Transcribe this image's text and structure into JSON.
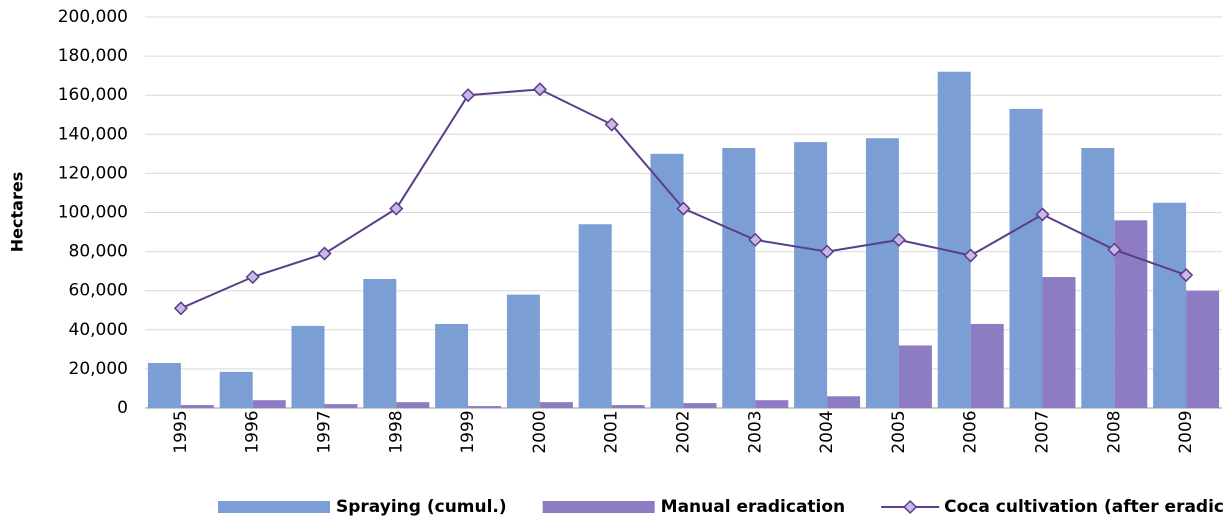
{
  "chart_data": {
    "type": "bar",
    "y_label": "Hectares",
    "categories": [
      "1995",
      "1996",
      "1997",
      "1998",
      "1999",
      "2000",
      "2001",
      "2002",
      "2003",
      "2004",
      "2005",
      "2006",
      "2007",
      "2008",
      "2009"
    ],
    "series": [
      {
        "name": "Spraying (cumul.)",
        "type": "bar",
        "color": "#7b9fd4",
        "values": [
          23000,
          18500,
          42000,
          66000,
          43000,
          58000,
          94000,
          130000,
          133000,
          136000,
          138000,
          172000,
          153000,
          133000,
          105000
        ]
      },
      {
        "name": "Manual eradication",
        "type": "bar",
        "color": "#8e7cc3",
        "values": [
          1500,
          4000,
          2000,
          3000,
          1000,
          3000,
          1500,
          2500,
          4000,
          6000,
          32000,
          43000,
          67000,
          96000,
          60000
        ]
      },
      {
        "name": "Coca cultivation (after eradication)",
        "type": "line",
        "color": "#5b3d8c",
        "marker_fill": "#c9b8e6",
        "values": [
          51000,
          67000,
          79000,
          102000,
          160000,
          163000,
          145000,
          102000,
          86000,
          80000,
          86000,
          78000,
          99000,
          81000,
          68000
        ]
      }
    ],
    "ylim": [
      0,
      200000
    ],
    "yticks": [
      0,
      {
        "value": 20000,
        "label": "20,000"
      },
      {
        "value": 40000,
        "label": "40,000"
      },
      {
        "value": 60000,
        "label": "60,000"
      },
      {
        "value": 80000,
        "label": "80,000"
      },
      {
        "value": 100000,
        "label": "100,000"
      },
      {
        "value": 120000,
        "label": "120,000"
      },
      {
        "value": 140000,
        "label": "140,000"
      },
      {
        "value": 160000,
        "label": "160,000"
      },
      {
        "value": 180000,
        "label": "180,000"
      },
      {
        "value": 200000,
        "label": "200,000"
      }
    ],
    "grid": true
  }
}
